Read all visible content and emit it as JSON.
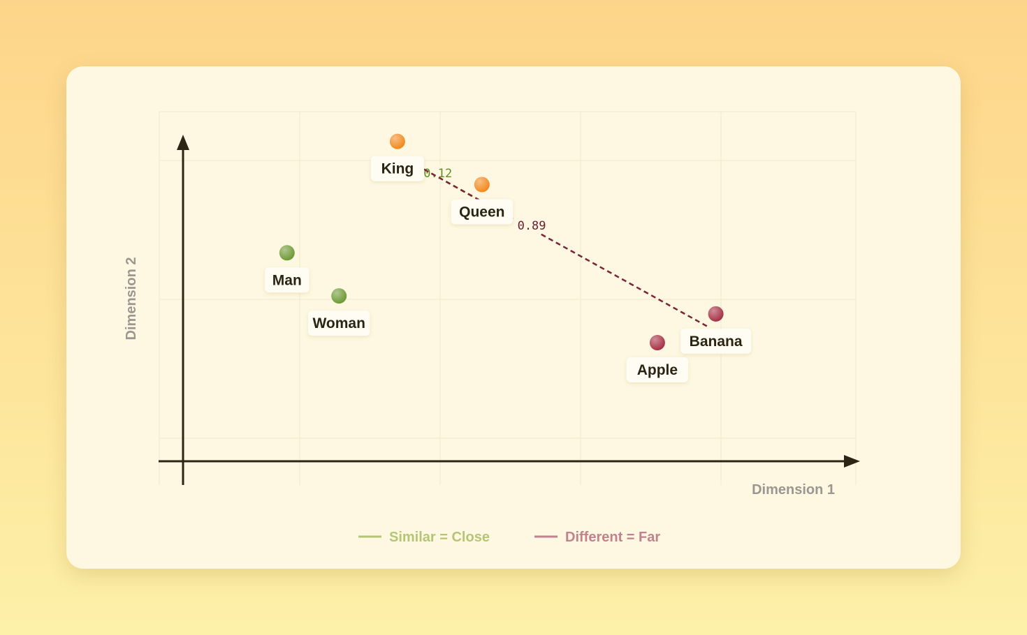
{
  "chart_data": {
    "type": "scatter",
    "xlabel": "Dimension 1",
    "ylabel": "Dimension 2",
    "xlim": [
      0,
      10
    ],
    "ylim": [
      0,
      10
    ],
    "grid": true,
    "points": [
      {
        "label": "King",
        "x": 3.3,
        "y": 8.9,
        "group": "royalty"
      },
      {
        "label": "Queen",
        "x": 4.6,
        "y": 7.7,
        "group": "royalty"
      },
      {
        "label": "Man",
        "x": 1.6,
        "y": 5.8,
        "group": "people"
      },
      {
        "label": "Woman",
        "x": 2.4,
        "y": 4.6,
        "group": "people"
      },
      {
        "label": "Banana",
        "x": 8.2,
        "y": 4.1,
        "group": "fruit"
      },
      {
        "label": "Apple",
        "x": 7.3,
        "y": 3.3,
        "group": "fruit"
      }
    ],
    "group_colors": {
      "royalty": "#f28a1f",
      "people": "#6f9a35",
      "fruit": "#a63245"
    },
    "distances": [
      {
        "from": "King",
        "to": "Queen",
        "value": "0.12",
        "kind": "similar"
      },
      {
        "from": "King",
        "to": "Banana",
        "value": "0.89",
        "kind": "different"
      }
    ],
    "legend": [
      {
        "label": "Similar = Close",
        "kind": "similar"
      },
      {
        "label": "Different = Far",
        "kind": "different"
      }
    ],
    "kind_colors": {
      "similar": {
        "line": "#6e9a2e",
        "text": "#5e8f1f",
        "legend": "#b4c674"
      },
      "different": {
        "line": "#7a2435",
        "text": "#6b1d30",
        "legend": "#c2818f"
      }
    },
    "legend_position": "bottom-center"
  }
}
